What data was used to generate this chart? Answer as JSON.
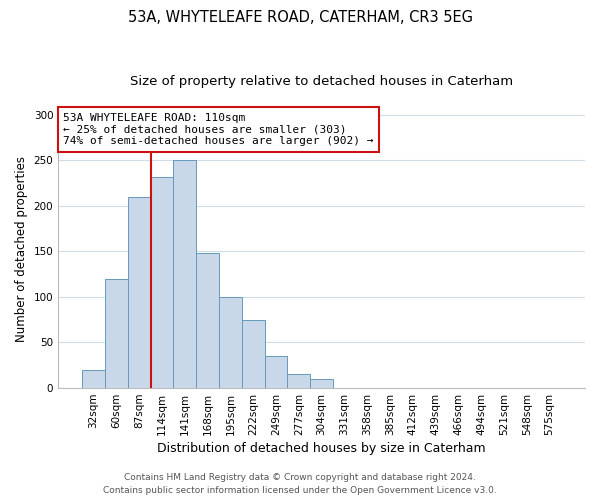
{
  "title": "53A, WHYTELEAFE ROAD, CATERHAM, CR3 5EG",
  "subtitle": "Size of property relative to detached houses in Caterham",
  "xlabel": "Distribution of detached houses by size in Caterham",
  "ylabel": "Number of detached properties",
  "bar_labels": [
    "32sqm",
    "60sqm",
    "87sqm",
    "114sqm",
    "141sqm",
    "168sqm",
    "195sqm",
    "222sqm",
    "249sqm",
    "277sqm",
    "304sqm",
    "331sqm",
    "358sqm",
    "385sqm",
    "412sqm",
    "439sqm",
    "466sqm",
    "494sqm",
    "521sqm",
    "548sqm",
    "575sqm"
  ],
  "bar_values": [
    20,
    120,
    210,
    232,
    250,
    148,
    100,
    75,
    35,
    15,
    10,
    0,
    0,
    0,
    0,
    0,
    0,
    0,
    0,
    0,
    0
  ],
  "bar_color": "#c8d8e8",
  "bar_edge_color": "#6699bb",
  "vline_index": 2.5,
  "vline_color": "#cc1111",
  "ylim": [
    0,
    305
  ],
  "yticks": [
    0,
    50,
    100,
    150,
    200,
    250,
    300
  ],
  "annotation_text": "53A WHYTELEAFE ROAD: 110sqm\n← 25% of detached houses are smaller (303)\n74% of semi-detached houses are larger (902) →",
  "annotation_box_color": "#ffffff",
  "annotation_box_edge": "#cc1111",
  "footer_line1": "Contains HM Land Registry data © Crown copyright and database right 2024.",
  "footer_line2": "Contains public sector information licensed under the Open Government Licence v3.0.",
  "title_fontsize": 10.5,
  "subtitle_fontsize": 9.5,
  "xlabel_fontsize": 9,
  "ylabel_fontsize": 8.5,
  "tick_fontsize": 7.5,
  "annotation_fontsize": 8,
  "footer_fontsize": 6.5,
  "grid_color": "#d0dde8",
  "figsize": [
    6.0,
    5.0
  ],
  "dpi": 100
}
